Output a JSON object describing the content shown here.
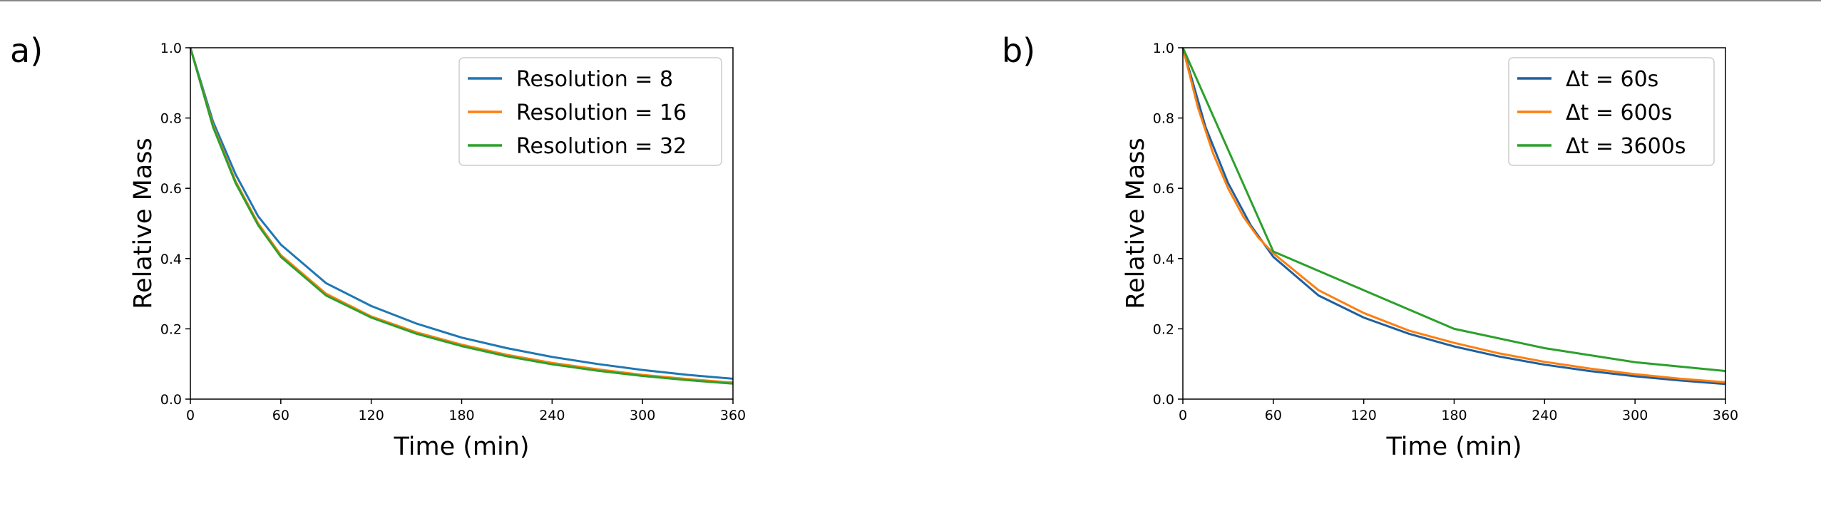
{
  "chart_data": [
    {
      "type": "line",
      "panel_label": "a)",
      "xlabel": "Time (min)",
      "ylabel": "Relative Mass",
      "xlim": [
        0,
        360
      ],
      "ylim": [
        0,
        1.0
      ],
      "xticks": [
        0,
        60,
        120,
        180,
        240,
        300,
        360
      ],
      "xtick_labels": [
        "0",
        "60",
        "120",
        "180",
        "240",
        "300",
        "360"
      ],
      "yticks": [
        0,
        0.2,
        0.4,
        0.6,
        0.8,
        1.0
      ],
      "ytick_labels": [
        "0.0",
        "0.2",
        "0.4",
        "0.6",
        "0.8",
        "1.0"
      ],
      "grid": false,
      "legend_position": "top-right",
      "x": [
        0,
        15,
        30,
        45,
        60,
        90,
        120,
        150,
        180,
        210,
        240,
        270,
        300,
        330,
        360
      ],
      "series": [
        {
          "name": "Resolution = 8",
          "color": "#1f77b4",
          "values": [
            1.0,
            0.79,
            0.64,
            0.52,
            0.44,
            0.33,
            0.265,
            0.215,
            0.175,
            0.145,
            0.12,
            0.1,
            0.083,
            0.069,
            0.058
          ]
        },
        {
          "name": "Resolution = 16",
          "color": "#ff7f0e",
          "values": [
            1.0,
            0.78,
            0.62,
            0.5,
            0.41,
            0.3,
            0.235,
            0.19,
            0.155,
            0.126,
            0.103,
            0.085,
            0.069,
            0.057,
            0.047
          ]
        },
        {
          "name": "Resolution = 32",
          "color": "#2ca02c",
          "values": [
            1.0,
            0.775,
            0.615,
            0.495,
            0.405,
            0.295,
            0.232,
            0.186,
            0.151,
            0.122,
            0.099,
            0.081,
            0.066,
            0.054,
            0.044
          ]
        }
      ]
    },
    {
      "type": "line",
      "panel_label": "b)",
      "xlabel": "Time (min)",
      "ylabel": "Relative Mass",
      "xlim": [
        0,
        360
      ],
      "ylim": [
        0,
        1.0
      ],
      "xticks": [
        0,
        60,
        120,
        180,
        240,
        300,
        360
      ],
      "xtick_labels": [
        "0",
        "60",
        "120",
        "180",
        "240",
        "300",
        "360"
      ],
      "yticks": [
        0,
        0.2,
        0.4,
        0.6,
        0.8,
        1.0
      ],
      "ytick_labels": [
        "0.0",
        "0.2",
        "0.4",
        "0.6",
        "0.8",
        "1.0"
      ],
      "grid": false,
      "legend_position": "top-right",
      "series": [
        {
          "name": "Δt = 60s",
          "color": "#1f5fa0",
          "x": [
            0,
            15,
            30,
            45,
            60,
            90,
            120,
            150,
            180,
            210,
            240,
            270,
            300,
            330,
            360
          ],
          "values": [
            1.0,
            0.775,
            0.615,
            0.495,
            0.405,
            0.295,
            0.232,
            0.186,
            0.15,
            0.121,
            0.098,
            0.08,
            0.065,
            0.053,
            0.043
          ]
        },
        {
          "name": "Δt = 600s",
          "color": "#ff7f0e",
          "x": [
            0,
            10,
            20,
            30,
            40,
            50,
            60,
            90,
            120,
            150,
            180,
            210,
            240,
            270,
            300,
            330,
            360
          ],
          "values": [
            1.0,
            0.83,
            0.7,
            0.6,
            0.52,
            0.46,
            0.415,
            0.31,
            0.245,
            0.195,
            0.16,
            0.13,
            0.106,
            0.087,
            0.071,
            0.058,
            0.048
          ]
        },
        {
          "name": "Δt = 3600s",
          "color": "#2ca02c",
          "x": [
            0,
            60,
            120,
            180,
            240,
            300,
            360
          ],
          "values": [
            1.0,
            0.42,
            0.31,
            0.2,
            0.145,
            0.105,
            0.08
          ]
        }
      ]
    }
  ]
}
